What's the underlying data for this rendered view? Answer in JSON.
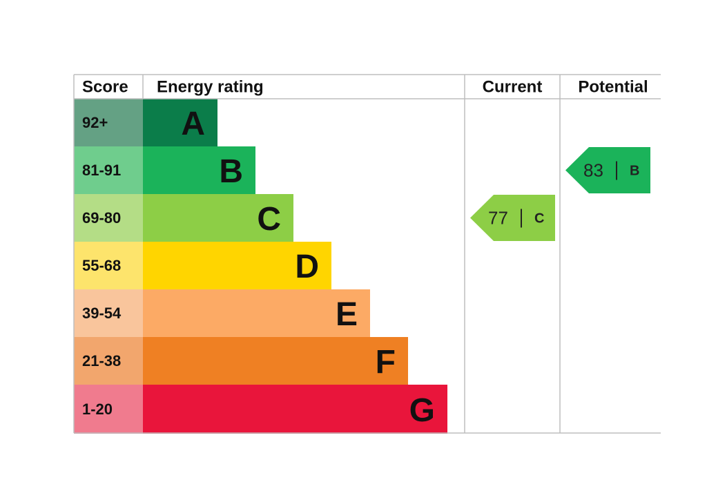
{
  "header": {
    "score": "Score",
    "energy_rating": "Energy rating",
    "current": "Current",
    "potential": "Potential"
  },
  "bands": [
    {
      "score": "92+",
      "letter": "A",
      "color": "#0b7d4a",
      "score_color": "#64a184"
    },
    {
      "score": "81-91",
      "letter": "B",
      "color": "#1bb35a",
      "score_color": "#6fcd8d"
    },
    {
      "score": "69-80",
      "letter": "C",
      "color": "#8dce46",
      "score_color": "#b4dd86"
    },
    {
      "score": "55-68",
      "letter": "D",
      "color": "#ffd500",
      "score_color": "#fde46c"
    },
    {
      "score": "39-54",
      "letter": "E",
      "color": "#fcaa65",
      "score_color": "#f9c59c"
    },
    {
      "score": "21-38",
      "letter": "F",
      "color": "#ef8023",
      "score_color": "#f2a66d"
    },
    {
      "score": "1-20",
      "letter": "G",
      "color": "#e9153b",
      "score_color": "#f07b8e"
    }
  ],
  "current": {
    "value": 77,
    "letter": "C"
  },
  "potential": {
    "value": 83,
    "letter": "B"
  }
}
